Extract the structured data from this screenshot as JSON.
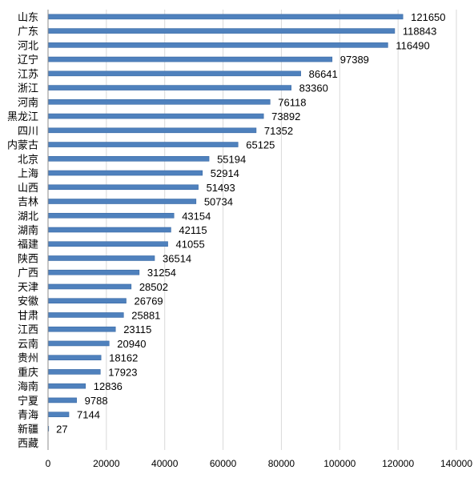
{
  "chart_data": {
    "type": "bar",
    "orientation": "horizontal",
    "title": "",
    "xlabel": "",
    "ylabel": "",
    "xlim": [
      0,
      140000
    ],
    "x_ticks": [
      "0",
      "20000",
      "40000",
      "60000",
      "80000",
      "100000",
      "120000",
      "140000"
    ],
    "grid": true,
    "legend": "none",
    "bar_color": "#4f81bd",
    "categories": [
      "山东",
      "广东",
      "河北",
      "辽宁",
      "江苏",
      "浙江",
      "河南",
      "黑龙江",
      "四川",
      "内蒙古",
      "北京",
      "上海",
      "山西",
      "吉林",
      "湖北",
      "湖南",
      "福建",
      "陕西",
      "广西",
      "天津",
      "安徽",
      "甘肃",
      "江西",
      "云南",
      "贵州",
      "重庆",
      "海南",
      "宁夏",
      "青海",
      "新疆",
      "西藏"
    ],
    "values": [
      121650,
      118843,
      116490,
      97389,
      86641,
      83360,
      76118,
      73892,
      71352,
      65125,
      55194,
      52914,
      51493,
      50734,
      43154,
      42115,
      41055,
      36514,
      31254,
      28502,
      26769,
      25881,
      23115,
      20940,
      18162,
      17923,
      12836,
      9788,
      7144,
      27,
      null
    ],
    "value_labels": [
      "121650",
      "118843",
      "116490",
      "97389",
      "86641",
      "83360",
      "76118",
      "73892",
      "71352",
      "65125",
      "55194",
      "52914",
      "51493",
      "50734",
      "43154",
      "42115",
      "41055",
      "36514",
      "31254",
      "28502",
      "26769",
      "25881",
      "23115",
      "20940",
      "18162",
      "17923",
      "12836",
      "9788",
      "7144",
      "27",
      ""
    ]
  }
}
